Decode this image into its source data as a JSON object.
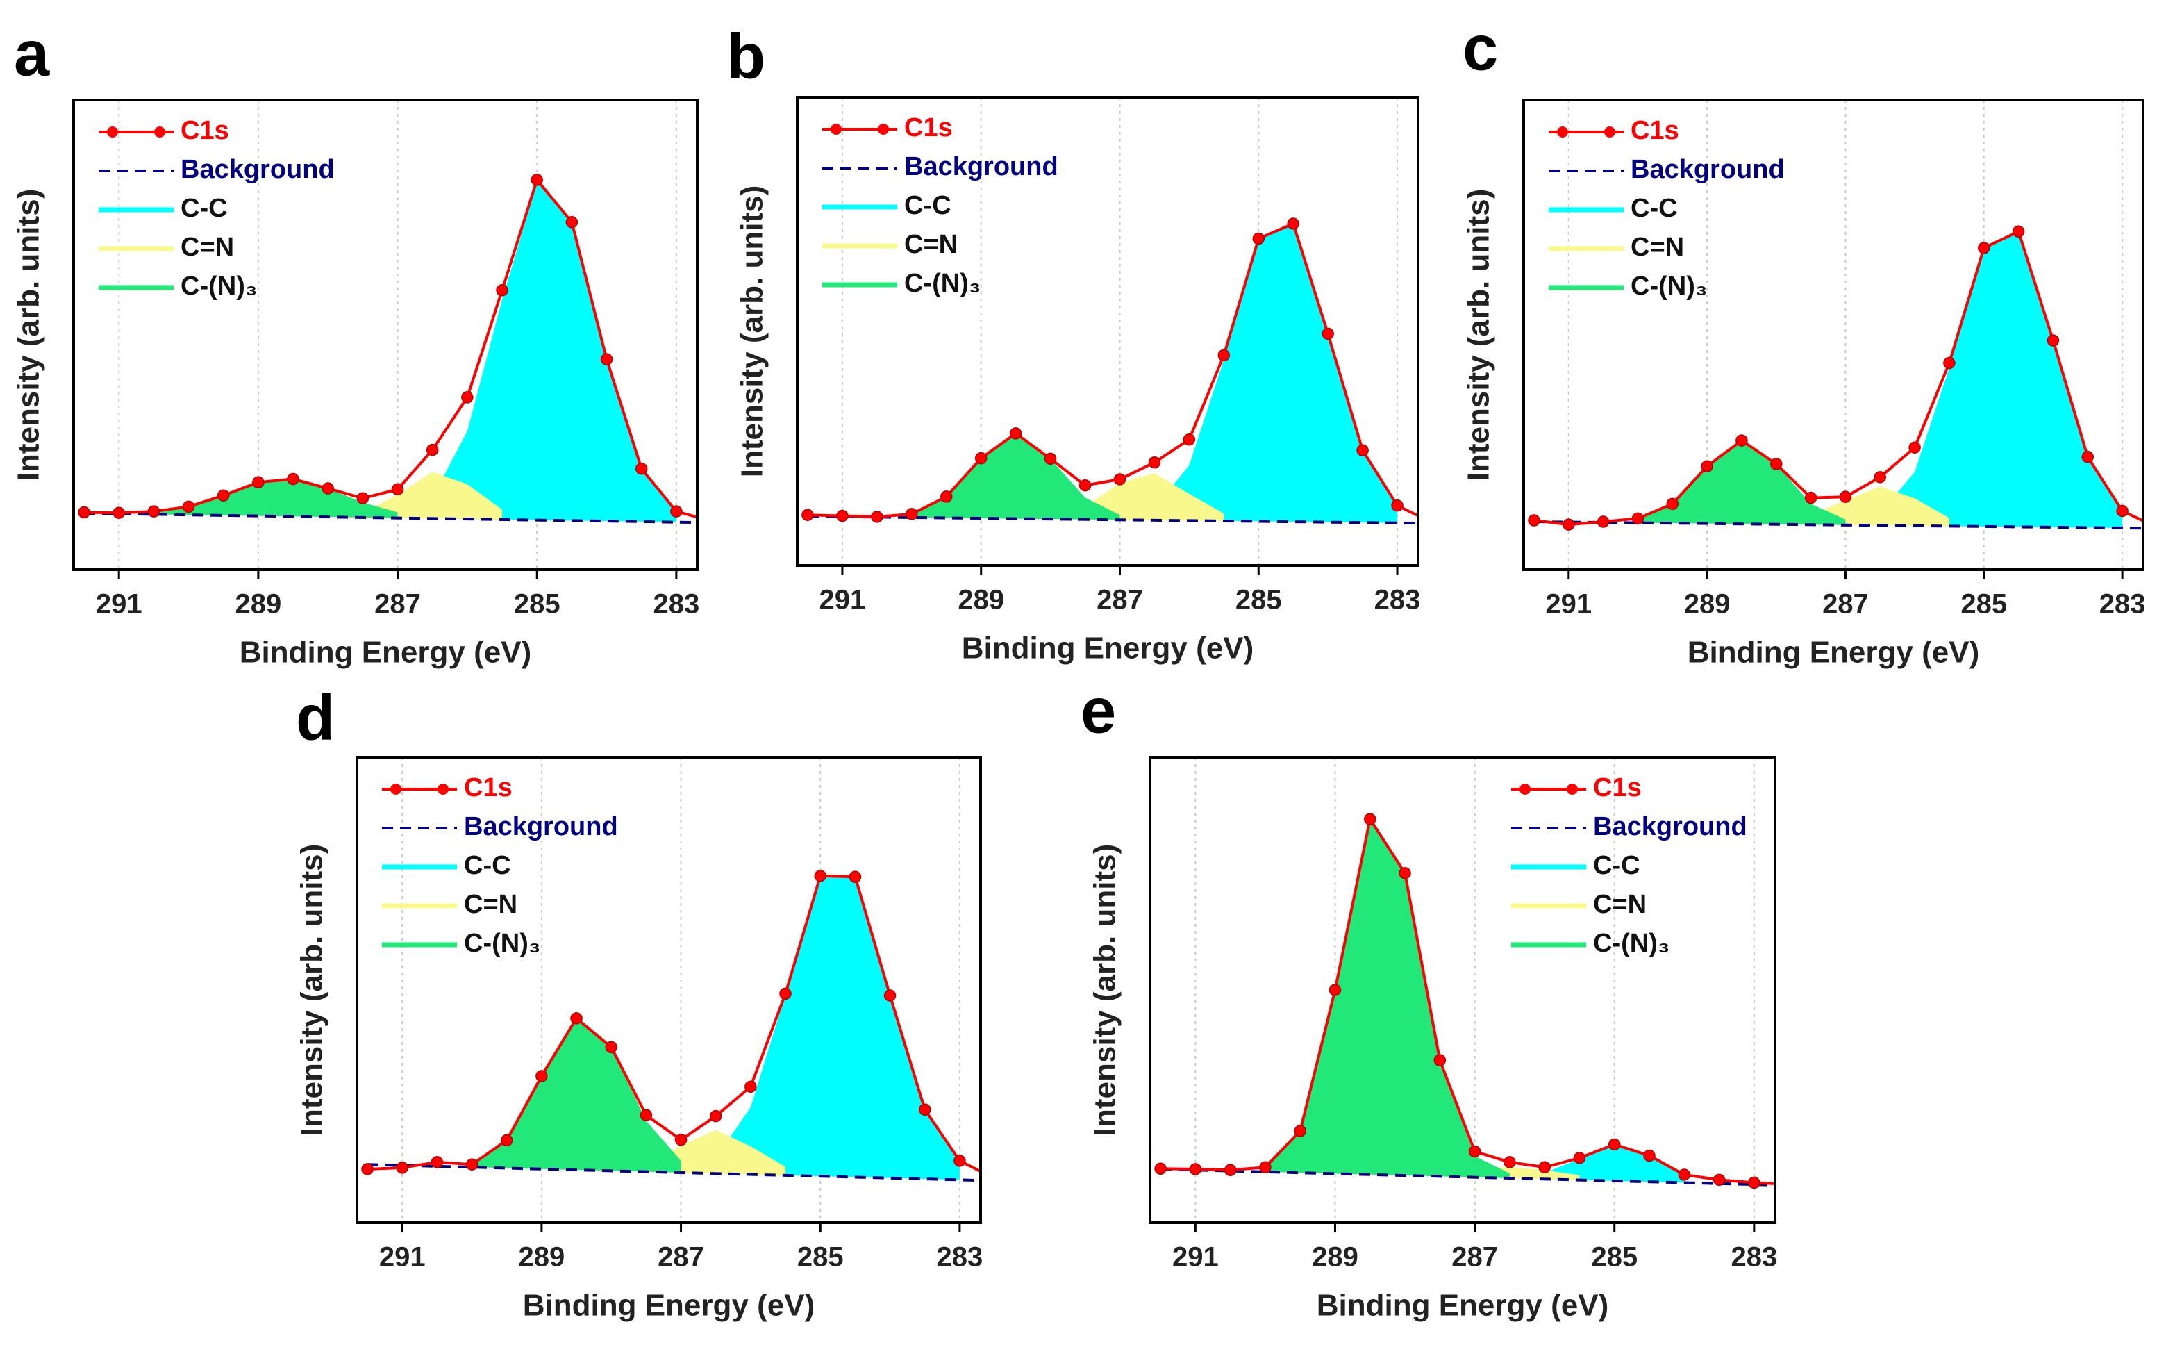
{
  "chart_data": [
    {
      "type": "line",
      "panel_label": "a",
      "xlabel": "Binding Energy (eV)",
      "ylabel": "Intensity (arb. units)",
      "xlim": [
        291.65,
        282.7
      ],
      "ylim": [
        0,
        100
      ],
      "xticks": [
        291,
        289,
        287,
        285,
        283
      ],
      "grid": true,
      "legend": "upper left",
      "x": [
        291.5,
        291,
        290.5,
        290,
        289.5,
        289,
        288.5,
        288,
        287.5,
        287,
        286.5,
        286,
        285.5,
        285,
        284.5,
        284,
        283.5,
        283,
        282.5
      ],
      "series": [
        {
          "name": "C1s",
          "color": "#ff0000",
          "style": "line-marker",
          "values": [
            12.2,
            12.1,
            12.4,
            13.4,
            15.8,
            18.6,
            19.3,
            17.3,
            15.2,
            17.1,
            25.5,
            36.7,
            59.5,
            83,
            74,
            44.8,
            21.5,
            12.4,
            10.4
          ]
        },
        {
          "name": "Background",
          "color": "#000080",
          "style": "dashed",
          "x": [
            291.5,
            282.5
          ],
          "values": [
            12,
            10
          ]
        },
        {
          "name": "C-C",
          "color": "#00ffff",
          "style": "area",
          "values": [
            null,
            null,
            null,
            null,
            null,
            null,
            null,
            null,
            null,
            null,
            15.4,
            29.5,
            57.5,
            82.5,
            74,
            44.8,
            21.5,
            12.4,
            null
          ]
        },
        {
          "name": "C=N",
          "color": "#f8f88c",
          "style": "area",
          "values": [
            null,
            null,
            null,
            null,
            null,
            null,
            null,
            null,
            12.1,
            16,
            20.8,
            18.2,
            12.8,
            null,
            null,
            null,
            null,
            null,
            null
          ]
        },
        {
          "name": "C-(N)₃",
          "color": "#22e87a",
          "style": "area",
          "values": [
            null,
            null,
            12.2,
            13.4,
            15.8,
            18.6,
            19.3,
            17.3,
            14.3,
            12.2,
            null,
            null,
            null,
            null,
            null,
            null,
            null,
            null,
            null
          ]
        }
      ]
    },
    {
      "type": "line",
      "panel_label": "b",
      "xlabel": "Binding Energy (eV)",
      "ylabel": "Intensity (arb. units)",
      "xlim": [
        291.65,
        282.7
      ],
      "ylim": [
        0,
        100
      ],
      "xticks": [
        291,
        289,
        287,
        285,
        283
      ],
      "grid": true,
      "legend": "upper left",
      "x": [
        291.5,
        291,
        290.5,
        290,
        289.5,
        289,
        288.5,
        288,
        287.5,
        287,
        286.5,
        286,
        285.5,
        285,
        284.5,
        284,
        283.5,
        283,
        282.5
      ],
      "series": [
        {
          "name": "C1s",
          "color": "#ff0000",
          "style": "line-marker",
          "values": [
            10.8,
            10.6,
            10.4,
            11,
            14.7,
            22.9,
            28.2,
            22.8,
            17.1,
            18.4,
            22,
            26.9,
            44.9,
            69.8,
            73,
            49.5,
            24.6,
            12.8,
            9.2
          ]
        },
        {
          "name": "Background",
          "color": "#000080",
          "style": "dashed",
          "x": [
            291.5,
            282.5
          ],
          "values": [
            10.5,
            9
          ]
        },
        {
          "name": "C-C",
          "color": "#00ffff",
          "style": "area",
          "values": [
            null,
            null,
            null,
            null,
            null,
            null,
            null,
            null,
            null,
            null,
            12.2,
            21.4,
            44,
            69.8,
            73,
            49.5,
            24.6,
            12.8,
            null
          ]
        },
        {
          "name": "C=N",
          "color": "#f8f88c",
          "style": "area",
          "values": [
            null,
            null,
            null,
            null,
            null,
            null,
            null,
            null,
            12.6,
            17.6,
            19.7,
            15.3,
            11.1,
            null,
            null,
            null,
            null,
            null,
            null
          ]
        },
        {
          "name": "C-(N)₃",
          "color": "#22e87a",
          "style": "area",
          "values": [
            null,
            null,
            null,
            11,
            14.7,
            22.9,
            28.2,
            22.8,
            14.5,
            10.8,
            null,
            null,
            null,
            null,
            null,
            null,
            null,
            null,
            null
          ]
        }
      ]
    },
    {
      "type": "line",
      "panel_label": "c",
      "xlabel": "Binding Energy (eV)",
      "ylabel": "Intensity (arb. units)",
      "xlim": [
        291.65,
        282.7
      ],
      "ylim": [
        0,
        100
      ],
      "xticks": [
        291,
        289,
        287,
        285,
        283
      ],
      "grid": true,
      "legend": "upper left",
      "x": [
        291.5,
        291,
        290.5,
        290,
        289.5,
        289,
        288.5,
        288,
        287.5,
        287,
        286.5,
        286,
        285.5,
        285,
        284.5,
        284,
        283.5,
        283,
        282.5
      ],
      "series": [
        {
          "name": "C1s",
          "color": "#ff0000",
          "style": "line-marker",
          "values": [
            10.5,
            9.6,
            10.2,
            10.9,
            14,
            22,
            27.5,
            22.5,
            15.3,
            15.5,
            19.7,
            26,
            44,
            68.5,
            72,
            48.8,
            24,
            12.5,
            9
          ]
        },
        {
          "name": "Background",
          "color": "#000080",
          "style": "dashed",
          "x": [
            291.5,
            282.5
          ],
          "values": [
            10.2,
            8.8
          ]
        },
        {
          "name": "C-C",
          "color": "#00ffff",
          "style": "area",
          "values": [
            null,
            null,
            null,
            null,
            null,
            null,
            null,
            null,
            null,
            null,
            12,
            20.8,
            43,
            68.5,
            72,
            48.8,
            24,
            12.5,
            null
          ]
        },
        {
          "name": "C=N",
          "color": "#f8f88c",
          "style": "area",
          "values": [
            null,
            null,
            null,
            null,
            null,
            null,
            null,
            null,
            11.6,
            14.8,
            17.7,
            15.2,
            11,
            null,
            null,
            null,
            null,
            null,
            null
          ]
        },
        {
          "name": "C-(N)₃",
          "color": "#22e87a",
          "style": "area",
          "values": [
            null,
            null,
            null,
            10.9,
            14,
            22,
            27.5,
            22.5,
            14,
            10.7,
            null,
            null,
            null,
            null,
            null,
            null,
            null,
            null,
            null
          ]
        }
      ]
    },
    {
      "type": "line",
      "panel_label": "d",
      "xlabel": "Binding Energy (eV)",
      "ylabel": "Intensity (arb. units)",
      "xlim": [
        291.65,
        282.7
      ],
      "ylim": [
        0,
        100
      ],
      "xticks": [
        291,
        289,
        287,
        285,
        283
      ],
      "grid": true,
      "legend": "upper left",
      "x": [
        291.5,
        291,
        290.5,
        290,
        289.5,
        289,
        288.5,
        288,
        287.5,
        287,
        286.5,
        286,
        285.5,
        285,
        284.5,
        284,
        283.5,
        283,
        282.5
      ],
      "series": [
        {
          "name": "C1s",
          "color": "#ff0000",
          "style": "line-marker",
          "values": [
            11.5,
            11.8,
            13,
            12.5,
            17.7,
            31.5,
            43.9,
            37.7,
            23.1,
            17.8,
            22.9,
            29.2,
            49.2,
            74.5,
            74.3,
            48.8,
            24.3,
            13.3,
            9.5
          ]
        },
        {
          "name": "Background",
          "color": "#000080",
          "style": "dashed",
          "x": [
            291.5,
            282.5
          ],
          "values": [
            12.5,
            9
          ]
        },
        {
          "name": "C-C",
          "color": "#00ffff",
          "style": "area",
          "values": [
            null,
            null,
            null,
            null,
            null,
            null,
            null,
            null,
            null,
            null,
            13.9,
            24.8,
            49.1,
            74.5,
            74.3,
            48.8,
            24.3,
            13.3,
            null
          ]
        },
        {
          "name": "C=N",
          "color": "#f8f88c",
          "style": "area",
          "values": [
            null,
            null,
            null,
            null,
            null,
            null,
            null,
            null,
            12.3,
            16.5,
            19.9,
            16.4,
            12,
            null,
            null,
            null,
            null,
            null,
            null
          ]
        },
        {
          "name": "C-(N)₃",
          "color": "#22e87a",
          "style": "area",
          "values": [
            null,
            null,
            null,
            12.5,
            17.7,
            31.5,
            43.9,
            37.7,
            21.9,
            13.3,
            null,
            null,
            null,
            null,
            null,
            null,
            null,
            null,
            null
          ]
        }
      ]
    },
    {
      "type": "line",
      "panel_label": "e",
      "xlabel": "Binding Energy (eV)",
      "ylabel": "Intensity (arb. units)",
      "xlim": [
        291.65,
        282.7
      ],
      "ylim": [
        0,
        100
      ],
      "xticks": [
        291,
        289,
        287,
        285,
        283
      ],
      "grid": true,
      "legend": "upper right",
      "x": [
        291.5,
        291,
        290.5,
        290,
        289.5,
        289,
        288.5,
        288,
        287.5,
        287,
        286.5,
        286,
        285.5,
        285,
        284.5,
        284,
        283.5,
        283,
        282.5
      ],
      "series": [
        {
          "name": "C1s",
          "color": "#ff0000",
          "style": "line-marker",
          "values": [
            11.6,
            11.5,
            11.3,
            11.9,
            19.7,
            50,
            86.7,
            75.1,
            34.9,
            15.3,
            13,
            11.9,
            13.9,
            16.8,
            14.4,
            10.3,
            9.2,
            8.6,
            8.2
          ]
        },
        {
          "name": "Background",
          "color": "#000080",
          "style": "dashed",
          "x": [
            291.5,
            282.5
          ],
          "values": [
            11.5,
            8
          ]
        },
        {
          "name": "C-C",
          "color": "#00ffff",
          "style": "area",
          "values": [
            null,
            null,
            null,
            null,
            null,
            null,
            null,
            null,
            null,
            null,
            null,
            10.7,
            13.7,
            16.8,
            14.4,
            10.3,
            null,
            null,
            null
          ]
        },
        {
          "name": "C=N",
          "color": "#f8f88c",
          "style": "area",
          "values": [
            null,
            null,
            null,
            null,
            null,
            null,
            null,
            null,
            10.5,
            11.5,
            12,
            11.3,
            10.2,
            null,
            null,
            null,
            null,
            null,
            null
          ]
        },
        {
          "name": "C-(N)₃",
          "color": "#22e87a",
          "style": "area",
          "values": [
            null,
            null,
            null,
            11.9,
            19.7,
            50,
            86.7,
            75.1,
            34.4,
            14.3,
            10.6,
            null,
            null,
            null,
            null,
            null,
            null,
            null,
            null
          ]
        }
      ]
    }
  ]
}
